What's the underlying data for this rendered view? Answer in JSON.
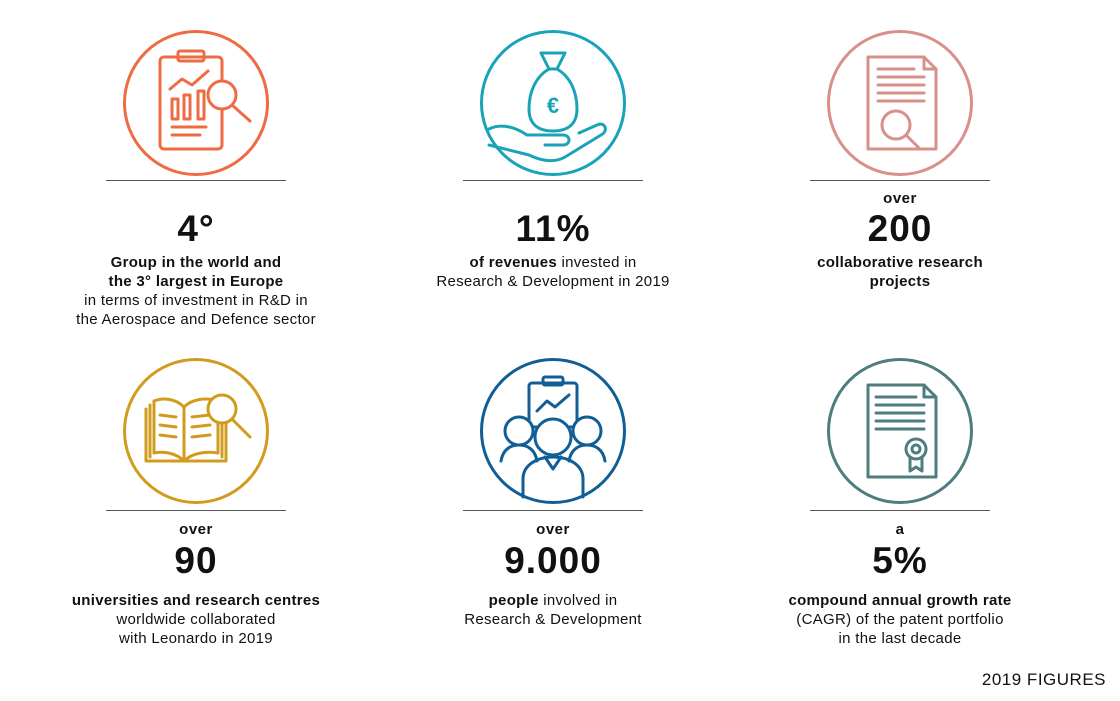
{
  "colors": {
    "orange": "#EE6B43",
    "teal": "#1AA3B8",
    "pink": "#D8908A",
    "gold": "#D19C1E",
    "blue": "#115E96",
    "slate": "#4E7D80"
  },
  "stats": [
    {
      "icon": "clipboard-chart-icon",
      "pre": "",
      "big": "4°",
      "lines": [
        {
          "bold": "Group in the world and",
          "rest": ""
        },
        {
          "bold": "the 3° largest in Europe",
          "rest": ""
        },
        {
          "bold": "",
          "rest": "in terms of investment in R&D in"
        },
        {
          "bold": "",
          "rest": "the Aerospace and Defence sector"
        }
      ]
    },
    {
      "icon": "money-bag-hand-icon",
      "pre": "",
      "big": "11%",
      "lines": [
        {
          "bold": "of revenues",
          "rest": " invested in"
        },
        {
          "bold": "",
          "rest": "Research & Development in 2019"
        }
      ]
    },
    {
      "icon": "document-search-icon",
      "pre": "over",
      "big": "200",
      "lines": [
        {
          "bold": "collaborative research",
          "rest": ""
        },
        {
          "bold": "projects",
          "rest": ""
        }
      ]
    },
    {
      "icon": "books-search-icon",
      "pre": "over",
      "big": "90",
      "lines": [
        {
          "bold": "universities and research centres",
          "rest": ""
        },
        {
          "bold": "",
          "rest": "worldwide collaborated"
        },
        {
          "bold": "",
          "rest": "with Leonardo in 2019"
        }
      ]
    },
    {
      "icon": "people-team-icon",
      "pre": "over",
      "big": "9.000",
      "lines": [
        {
          "bold": "people",
          "rest": " involved in"
        },
        {
          "bold": "",
          "rest": "Research & Development"
        }
      ]
    },
    {
      "icon": "certificate-icon",
      "pre": "a",
      "big": "5%",
      "lines": [
        {
          "bold": "compound annual growth rate",
          "rest": ""
        },
        {
          "bold": "",
          "rest": "(CAGR) of the patent portfolio"
        },
        {
          "bold": "",
          "rest": "in the last decade"
        }
      ]
    }
  ],
  "footer": "2019 FIGURES"
}
